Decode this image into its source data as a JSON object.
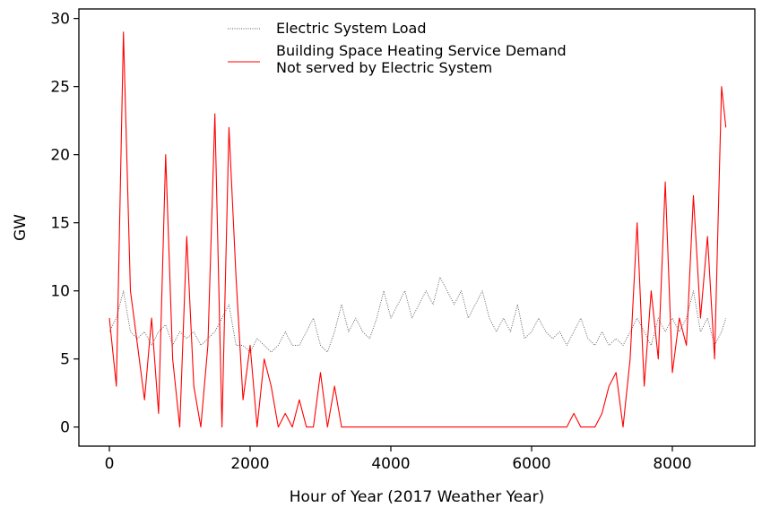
{
  "chart_data": {
    "type": "line",
    "xlabel": "Hour of Year (2017 Weather Year)",
    "ylabel": "GW",
    "x": [
      0,
      100,
      200,
      300,
      400,
      500,
      600,
      700,
      800,
      900,
      1000,
      1100,
      1200,
      1300,
      1400,
      1500,
      1600,
      1700,
      1800,
      1900,
      2000,
      2100,
      2200,
      2300,
      2400,
      2500,
      2600,
      2700,
      2800,
      2900,
      3000,
      3100,
      3200,
      3300,
      3400,
      3500,
      3600,
      3700,
      3800,
      3900,
      4000,
      4100,
      4200,
      4300,
      4400,
      4500,
      4600,
      4700,
      4800,
      4900,
      5000,
      5100,
      5200,
      5300,
      5400,
      5500,
      5600,
      5700,
      5800,
      5900,
      6000,
      6100,
      6200,
      6300,
      6400,
      6500,
      6600,
      6700,
      6800,
      6900,
      7000,
      7100,
      7200,
      7300,
      7400,
      7500,
      7600,
      7700,
      7800,
      7900,
      8000,
      8100,
      8200,
      8300,
      8400,
      8500,
      8600,
      8700,
      8760
    ],
    "series": [
      {
        "name": "Electric System Load",
        "color": "#555555",
        "dash": "dotted",
        "values": [
          7,
          8,
          10,
          7,
          6.5,
          7,
          6,
          7,
          7.5,
          6,
          7,
          6.5,
          7,
          6,
          6.5,
          7,
          8,
          9,
          6,
          6,
          5.5,
          6.5,
          6,
          5.5,
          6,
          7,
          6,
          6,
          7,
          8,
          6,
          5.5,
          7,
          9,
          7,
          8,
          7,
          6.5,
          8,
          10,
          8,
          9,
          10,
          8,
          9,
          10,
          9,
          11,
          10,
          9,
          10,
          8,
          9,
          10,
          8,
          7,
          8,
          7,
          9,
          6.5,
          7,
          8,
          7,
          6.5,
          7,
          6,
          7,
          8,
          6.5,
          6,
          7,
          6,
          6.5,
          6,
          7,
          8,
          7,
          6,
          8,
          7,
          8,
          7,
          8,
          10,
          7,
          8,
          6,
          7,
          8
        ]
      },
      {
        "name": "Building Space Heating Service Demand\nNot served by Electric System",
        "color": "#ff0000",
        "dash": "solid",
        "values": [
          8,
          3,
          29,
          10,
          6,
          2,
          8,
          1,
          20,
          5,
          0,
          14,
          3,
          0,
          6,
          23,
          0,
          22,
          11,
          2,
          6,
          0,
          5,
          3,
          0,
          1,
          0,
          2,
          0,
          0,
          4,
          0,
          3,
          0,
          0,
          0,
          0,
          0,
          0,
          0,
          0,
          0,
          0,
          0,
          0,
          0,
          0,
          0,
          0,
          0,
          0,
          0,
          0,
          0,
          0,
          0,
          0,
          0,
          0,
          0,
          0,
          0,
          0,
          0,
          0,
          0,
          1,
          0,
          0,
          0,
          1,
          3,
          4,
          0,
          5,
          15,
          3,
          10,
          5,
          18,
          4,
          8,
          6,
          17,
          8,
          14,
          5,
          25,
          22
        ]
      }
    ],
    "xlim": [
      -433,
      9172
    ],
    "ylim": [
      -1.4,
      30.7
    ],
    "xticks": [
      0,
      2000,
      4000,
      6000,
      8000
    ],
    "yticks": [
      0,
      5,
      10,
      15,
      20,
      25,
      30
    ],
    "legend": "upper center"
  }
}
